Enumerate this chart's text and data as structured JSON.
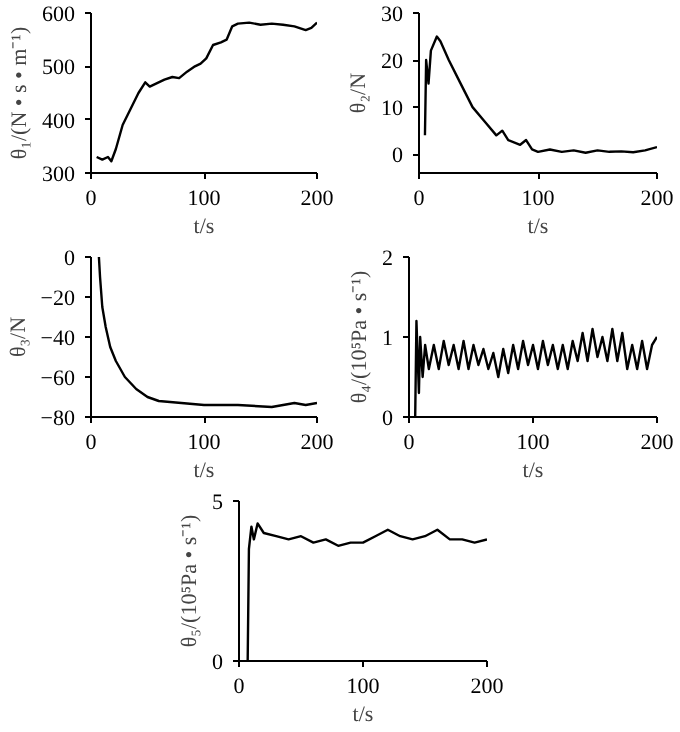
{
  "chart_data": [
    {
      "type": "line",
      "xlabel": "t/s",
      "ylabel": "θ₁/(N • s • m⁻¹)",
      "xlim": [
        0,
        200
      ],
      "xticks": [
        0,
        100,
        200
      ],
      "ylim": [
        300,
        600
      ],
      "yticks": [
        300,
        400,
        500,
        600
      ],
      "grid": false,
      "series": [
        {
          "color": "#000000",
          "x": [
            5,
            10,
            15,
            18,
            22,
            28,
            35,
            42,
            48,
            52,
            58,
            65,
            72,
            78,
            85,
            92,
            97,
            102,
            108,
            115,
            120,
            125,
            130,
            140,
            150,
            160,
            170,
            180,
            190,
            195,
            200
          ],
          "values": [
            330,
            325,
            330,
            322,
            345,
            390,
            420,
            450,
            470,
            462,
            468,
            475,
            480,
            478,
            490,
            500,
            505,
            515,
            540,
            545,
            550,
            575,
            580,
            582,
            578,
            580,
            578,
            575,
            568,
            572,
            582
          ]
        }
      ]
    },
    {
      "type": "line",
      "xlabel": "t/s",
      "ylabel": "θ₂/N",
      "xlim": [
        0,
        200
      ],
      "xticks": [
        0,
        100,
        200
      ],
      "ylim": [
        -4,
        30
      ],
      "yticks": [
        0,
        10,
        20,
        30
      ],
      "grid": false,
      "series": [
        {
          "color": "#000000",
          "x": [
            5,
            6,
            8,
            10,
            15,
            18,
            25,
            35,
            45,
            55,
            65,
            70,
            75,
            85,
            90,
            95,
            100,
            110,
            120,
            130,
            140,
            150,
            160,
            170,
            180,
            190,
            200
          ],
          "values": [
            4,
            20,
            15,
            22,
            25,
            24,
            20,
            15,
            10,
            7,
            4,
            5,
            3,
            2,
            3,
            1,
            0.5,
            1,
            0.5,
            0.8,
            0.3,
            0.8,
            0.5,
            0.6,
            0.4,
            0.8,
            1.5
          ]
        }
      ]
    },
    {
      "type": "line",
      "xlabel": "t/s",
      "ylabel": "θ₃/N",
      "xlim": [
        0,
        200
      ],
      "xticks": [
        0,
        100,
        200
      ],
      "ylim": [
        -80,
        0
      ],
      "yticks": [
        -80,
        -60,
        -40,
        -20,
        0
      ],
      "grid": false,
      "series": [
        {
          "color": "#000000",
          "x": [
            7,
            8,
            10,
            13,
            17,
            22,
            30,
            40,
            50,
            60,
            80,
            100,
            130,
            160,
            170,
            180,
            190,
            200
          ],
          "values": [
            0,
            -10,
            -25,
            -35,
            -45,
            -52,
            -60,
            -66,
            -70,
            -72,
            -73,
            -74,
            -74,
            -75,
            -74,
            -73,
            -74,
            -73
          ]
        }
      ]
    },
    {
      "type": "line",
      "xlabel": "t/s",
      "ylabel": "θ₄/(10⁵Pa • s⁻¹)",
      "xlim": [
        0,
        200
      ],
      "xticks": [
        0,
        100,
        200
      ],
      "ylim": [
        0,
        2
      ],
      "yticks": [
        0,
        1,
        2
      ],
      "grid": false,
      "series": [
        {
          "color": "#000000",
          "x": [
            5,
            6,
            8,
            9,
            11,
            13,
            16,
            20,
            24,
            28,
            32,
            36,
            40,
            44,
            48,
            52,
            56,
            60,
            64,
            68,
            72,
            76,
            80,
            84,
            88,
            92,
            96,
            100,
            104,
            108,
            112,
            116,
            120,
            124,
            128,
            132,
            136,
            140,
            144,
            148,
            152,
            156,
            160,
            164,
            168,
            172,
            176,
            180,
            184,
            188,
            192,
            196,
            200
          ],
          "values": [
            0,
            1.2,
            0.3,
            1.0,
            0.5,
            0.9,
            0.6,
            0.9,
            0.6,
            0.95,
            0.65,
            0.9,
            0.6,
            0.95,
            0.6,
            0.9,
            0.65,
            0.85,
            0.6,
            0.8,
            0.5,
            0.85,
            0.55,
            0.9,
            0.6,
            0.95,
            0.65,
            0.9,
            0.6,
            0.95,
            0.65,
            0.9,
            0.6,
            0.9,
            0.6,
            0.95,
            0.7,
            1.05,
            0.7,
            1.1,
            0.75,
            1.0,
            0.7,
            1.1,
            0.7,
            1.05,
            0.6,
            0.9,
            0.6,
            0.95,
            0.6,
            0.9,
            1.0
          ]
        }
      ]
    },
    {
      "type": "line",
      "xlabel": "t/s",
      "ylabel": "θ₅/(10⁵Pa • s⁻¹)",
      "xlim": [
        0,
        200
      ],
      "xticks": [
        0,
        100,
        200
      ],
      "ylim": [
        0,
        5
      ],
      "yticks": [
        0,
        5
      ],
      "grid": false,
      "series": [
        {
          "color": "#000000",
          "x": [
            7,
            8,
            10,
            12,
            15,
            20,
            30,
            40,
            50,
            60,
            70,
            80,
            90,
            100,
            110,
            120,
            130,
            140,
            150,
            160,
            170,
            180,
            190,
            200
          ],
          "values": [
            0,
            3.5,
            4.2,
            3.8,
            4.3,
            4.0,
            3.9,
            3.8,
            3.9,
            3.7,
            3.8,
            3.6,
            3.7,
            3.7,
            3.9,
            4.1,
            3.9,
            3.8,
            3.9,
            4.1,
            3.8,
            3.8,
            3.7,
            3.8
          ]
        }
      ]
    }
  ]
}
